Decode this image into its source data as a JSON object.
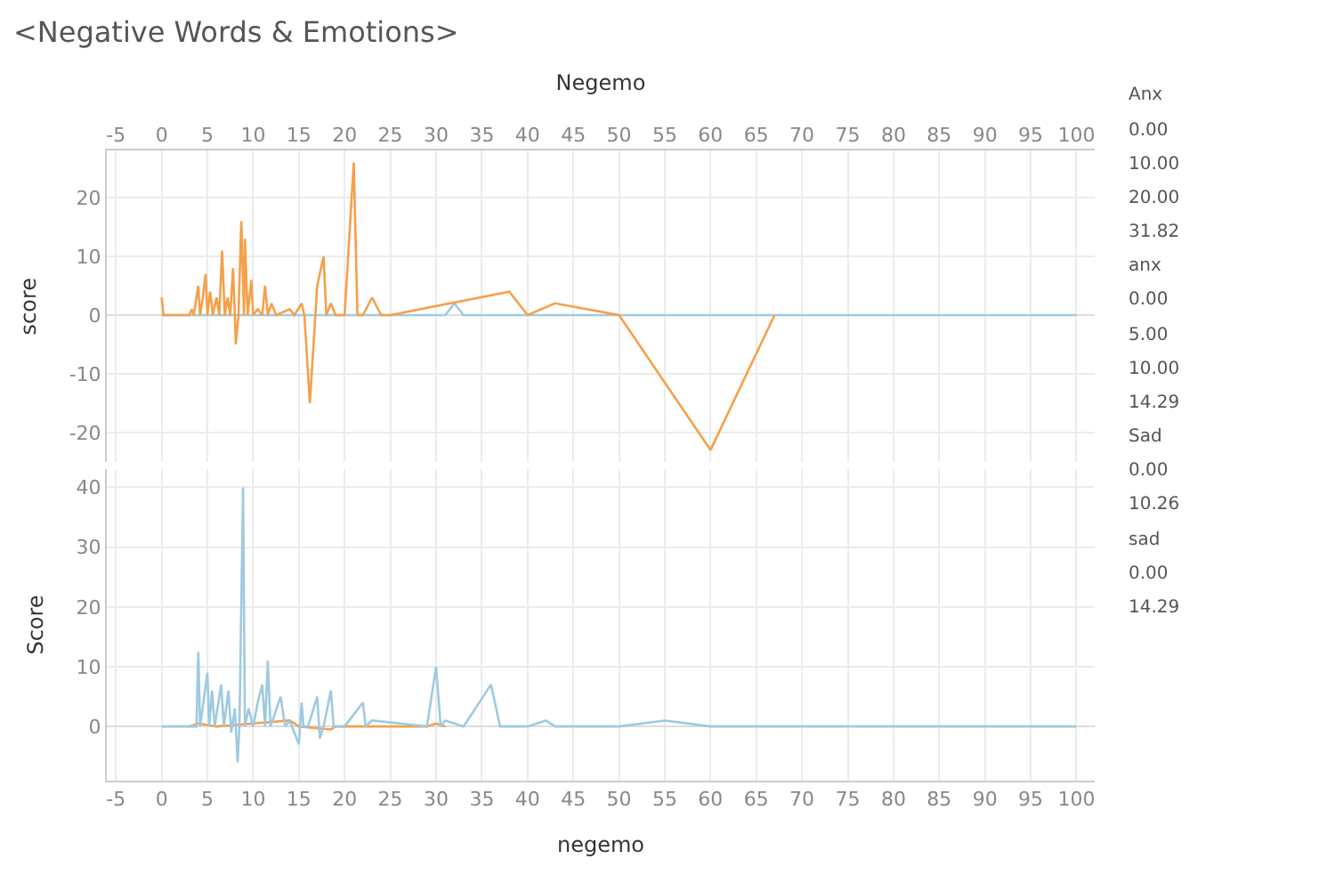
{
  "chart_data": [
    {
      "type": "line",
      "title": "<Negative Words & Emotions>",
      "xlabel": "Negemo",
      "ylabel": "score",
      "xlim": [
        -6,
        102
      ],
      "xticks": [
        -5,
        0,
        5,
        10,
        15,
        20,
        25,
        30,
        35,
        40,
        45,
        50,
        55,
        60,
        65,
        70,
        75,
        80,
        85,
        90,
        95,
        100
      ],
      "ylim": [
        -25,
        28
      ],
      "yticks": [
        -20,
        -10,
        0,
        10,
        20
      ],
      "grid": true,
      "annotations": [
        "Anx",
        "0.00",
        "10.00",
        "20.00",
        "31.82",
        "anx",
        "0.00",
        "5.00",
        "10.00",
        "14.29",
        "Sad",
        "0.00",
        "10.26",
        "sad",
        "0.00",
        "14.29"
      ],
      "series": [
        {
          "color": "#9ecae1",
          "x": [
            0,
            31,
            32,
            33,
            100
          ],
          "values": [
            0,
            0,
            2,
            0,
            0
          ]
        },
        {
          "color": "#f5a04a",
          "x": [
            0,
            0.2,
            3,
            3.3,
            3.5,
            4,
            4.2,
            4.5,
            4.8,
            5,
            5.3,
            5.6,
            6,
            6.3,
            6.6,
            6.9,
            7.2,
            7.5,
            7.8,
            8,
            8.1,
            8.4,
            8.7,
            9,
            9.1,
            9.4,
            9.8,
            10,
            10.5,
            11,
            11.3,
            11.6,
            12,
            12.5,
            14,
            14.5,
            15.3,
            15.6,
            16.2,
            17,
            17.7,
            18,
            18.5,
            19,
            20,
            21,
            21.4,
            22,
            23,
            24,
            25,
            38,
            40,
            43,
            50,
            60,
            67
          ],
          "values": [
            3,
            0,
            0,
            1,
            0,
            5,
            0,
            3,
            7,
            0,
            4,
            0,
            3,
            0,
            11,
            0,
            3,
            0,
            8,
            0,
            -5,
            0,
            16,
            0,
            13,
            0,
            6,
            0,
            1,
            0,
            5,
            0,
            2,
            0,
            1,
            0,
            2,
            0,
            -15,
            5,
            10,
            0,
            2,
            0,
            0,
            26,
            0,
            0,
            3,
            0,
            0,
            4,
            0,
            2,
            0,
            -23,
            0
          ]
        }
      ]
    },
    {
      "type": "line",
      "xlabel": "negemo",
      "ylabel": "Score",
      "xlim": [
        -6,
        102
      ],
      "xticks": [
        -5,
        0,
        5,
        10,
        15,
        20,
        25,
        30,
        35,
        40,
        45,
        50,
        55,
        60,
        65,
        70,
        75,
        80,
        85,
        90,
        95,
        100
      ],
      "ylim": [
        -9,
        43
      ],
      "yticks": [
        0,
        10,
        20,
        30,
        40
      ],
      "grid": true,
      "series": [
        {
          "color": "#f5a04a",
          "x": [
            3,
            4,
            6,
            14,
            15,
            18.5,
            19,
            29,
            30,
            31
          ],
          "values": [
            0,
            0.5,
            0,
            1,
            0,
            -0.5,
            0,
            0,
            0.5,
            0
          ]
        },
        {
          "color": "#9ecae1",
          "x": [
            0,
            3.8,
            4,
            4.2,
            5,
            5.2,
            5.5,
            5.8,
            6.5,
            6.8,
            7.3,
            7.6,
            8,
            8.3,
            8.5,
            8.9,
            9.1,
            9.5,
            10,
            10.5,
            11,
            11.3,
            11.6,
            11.9,
            13,
            13.5,
            14,
            15,
            15.3,
            15.5,
            16,
            17,
            17.3,
            17.7,
            18.5,
            18.8,
            20,
            22,
            22.3,
            23,
            29,
            30,
            30.5,
            31,
            33,
            36,
            37,
            40,
            42,
            43,
            50,
            55,
            60,
            100
          ],
          "values": [
            0,
            0,
            12.5,
            0,
            9,
            0,
            6,
            0,
            7,
            0,
            6,
            -1,
            3,
            -6,
            0,
            40,
            0,
            3,
            0,
            4,
            7,
            0,
            11,
            0,
            5,
            0,
            1,
            -3,
            4,
            0,
            0,
            5,
            -2,
            0,
            6,
            0,
            0,
            4,
            0,
            1,
            0,
            10,
            0,
            1,
            0,
            7,
            0,
            0,
            1,
            0,
            0,
            1,
            0,
            0
          ]
        }
      ]
    }
  ]
}
